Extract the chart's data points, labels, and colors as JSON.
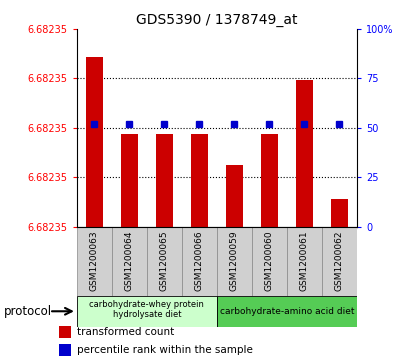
{
  "title": "GDS5390 / 1378749_at",
  "samples": [
    "GSM1200063",
    "GSM1200064",
    "GSM1200065",
    "GSM1200066",
    "GSM1200059",
    "GSM1200060",
    "GSM1200061",
    "GSM1200062"
  ],
  "bar_values": [
    6.68238,
    6.682353,
    6.682353,
    6.682353,
    6.682342,
    6.682353,
    6.682372,
    6.68233
  ],
  "percentile_values": [
    52,
    52,
    52,
    52,
    52,
    52,
    52,
    52
  ],
  "y_min": 6.68232,
  "y_max": 6.68239,
  "y_tick_labels": [
    "6.68235",
    "6.68235",
    "6.68235",
    "6.68235",
    "6.68235"
  ],
  "right_y_ticks": [
    0,
    25,
    50,
    75,
    100
  ],
  "bar_color": "#cc0000",
  "percentile_color": "#0000cc",
  "group1_label": "carbohydrate-whey protein\nhydrolysate diet",
  "group2_label": "carbohydrate-amino acid diet",
  "group1_count": 4,
  "group2_count": 4,
  "group1_color": "#ccffcc",
  "group2_color": "#55cc55",
  "protocol_label": "protocol",
  "legend_bar_label": "transformed count",
  "legend_pct_label": "percentile rank within the sample",
  "xtick_bg_color": "#d0d0d0",
  "fig_width": 4.15,
  "fig_height": 3.63,
  "dpi": 100
}
